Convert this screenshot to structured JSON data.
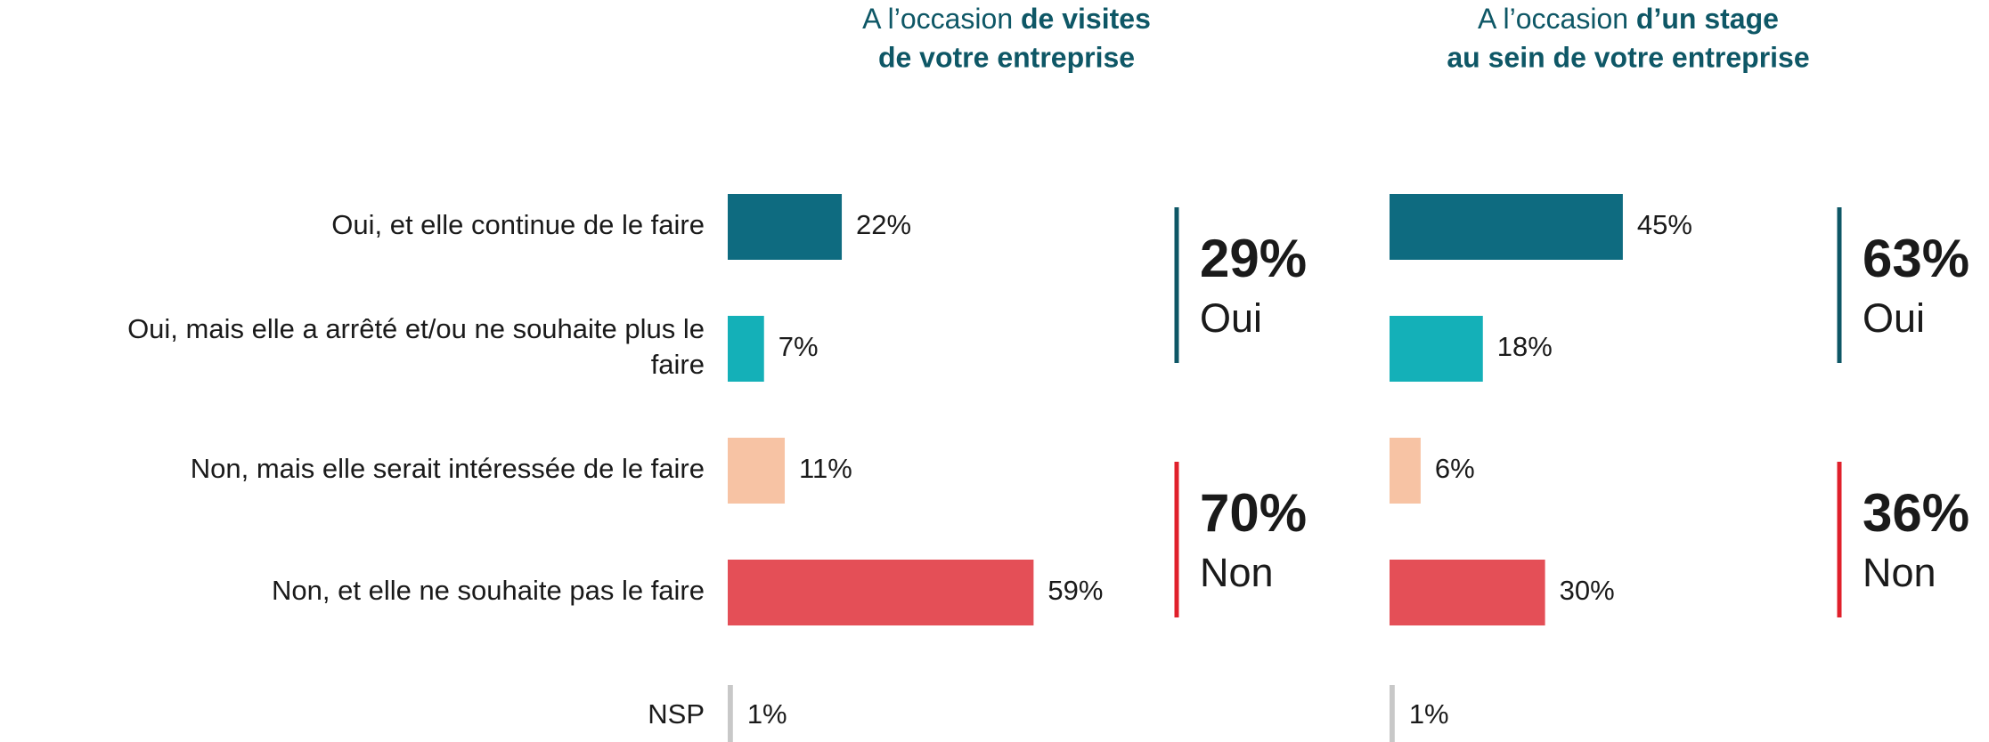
{
  "chart_data": [
    {
      "type": "bar",
      "title": {
        "prefix": "A l’occasion",
        "bold": [
          "de visites",
          "de votre entreprise"
        ]
      },
      "categories": [
        "Oui, et elle continue de le faire",
        [
          "Oui, mais elle a arrêté et/ou ne souhaite plus le",
          "faire"
        ],
        "Non, mais elle serait intéressée de le faire",
        "Non, et elle ne souhaite pas le faire",
        "NSP"
      ],
      "values": [
        22,
        7,
        11,
        59,
        1
      ],
      "value_labels": [
        "22%",
        "7%",
        "11%",
        "59%",
        "1%"
      ],
      "colors": [
        "#0e6b80",
        "#14b0b8",
        "#f7c3a4",
        "#e44f57",
        "#c8c8c8"
      ],
      "summary": [
        {
          "value": 29,
          "label": "29%",
          "text": "Oui",
          "color": "#0e5766"
        },
        {
          "value": 70,
          "label": "70%",
          "text": "Non",
          "color": "#e0202b"
        }
      ]
    },
    {
      "type": "bar",
      "title": {
        "prefix": "A l’occasion",
        "bold": [
          "d’un stage",
          "au sein de votre entreprise"
        ]
      },
      "values": [
        45,
        18,
        6,
        30,
        1
      ],
      "value_labels": [
        "45%",
        "18%",
        "6%",
        "30%",
        "1%"
      ],
      "colors": [
        "#0e6b80",
        "#14b0b8",
        "#f7c3a4",
        "#e44f57",
        "#c8c8c8"
      ],
      "summary": [
        {
          "value": 63,
          "label": "63%",
          "text": "Oui",
          "color": "#0e5766"
        },
        {
          "value": 36,
          "label": "36%",
          "text": "Non",
          "color": "#e0202b"
        }
      ]
    }
  ]
}
